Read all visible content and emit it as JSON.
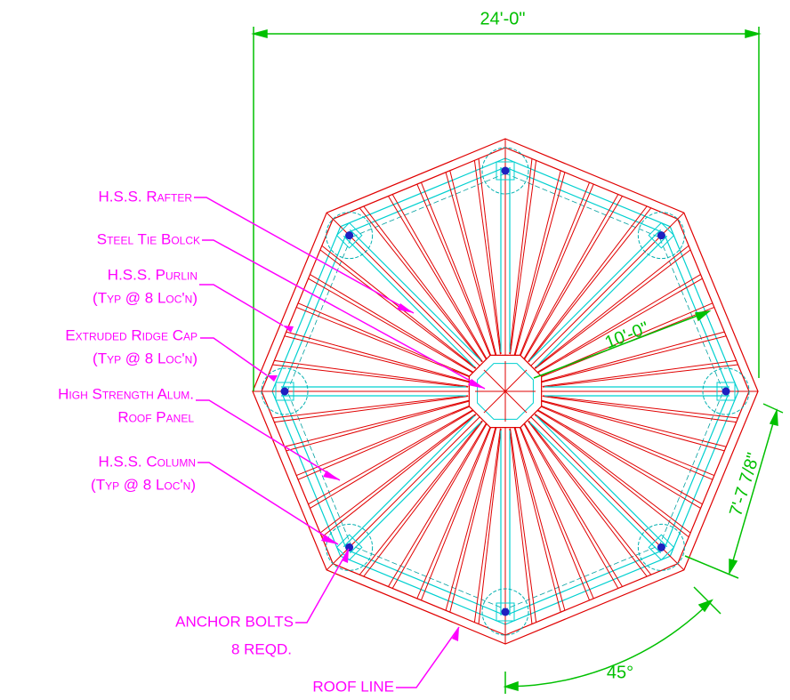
{
  "dimensions": {
    "overall_width": "24'-0\"",
    "radius": "10'-0\"",
    "side_length": "7'-7 7/8\"",
    "angle": "45°"
  },
  "callouts": [
    {
      "lines": [
        "H.S.S. Rafter"
      ]
    },
    {
      "lines": [
        "Steel Tie Bolck"
      ]
    },
    {
      "lines": [
        "H.S.S. Purlin",
        "(Typ @ 8 Loc'n)"
      ]
    },
    {
      "lines": [
        "Extruded Ridge Cap",
        "(Typ @ 8 Loc'n)"
      ]
    },
    {
      "lines": [
        "High Strength Alum.",
        "Roof Panel"
      ]
    },
    {
      "lines": [
        "H.S.S. Column",
        "(Typ @ 8 Loc'n)"
      ]
    },
    {
      "lines": [
        "ANCHOR BOLTS",
        "8 REQD."
      ]
    },
    {
      "lines": [
        "ROOF LINE"
      ]
    }
  ]
}
